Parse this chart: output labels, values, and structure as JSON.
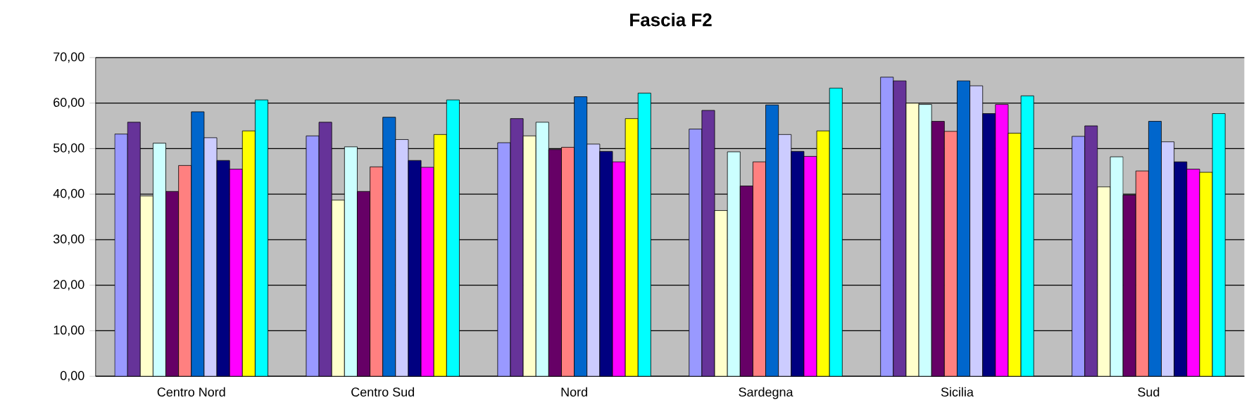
{
  "chart_data": {
    "type": "bar",
    "title": "Fascia F2",
    "categories": [
      "Centro Nord",
      "Centro Sud",
      "Nord",
      "Sardegna",
      "Sicilia",
      "Sud"
    ],
    "series": [
      {
        "color": "#9999ff",
        "values": [
          53.2,
          52.8,
          51.3,
          54.3,
          65.7,
          52.7
        ]
      },
      {
        "color": "#663399",
        "values": [
          55.8,
          55.8,
          56.6,
          58.4,
          64.9,
          55.0
        ]
      },
      {
        "color": "#ffffcc",
        "values": [
          39.6,
          38.7,
          52.8,
          36.4,
          60.0,
          41.6
        ]
      },
      {
        "color": "#ccffff",
        "values": [
          51.2,
          50.4,
          55.8,
          49.3,
          59.7,
          48.2
        ]
      },
      {
        "color": "#660066",
        "values": [
          40.6,
          40.6,
          49.8,
          41.8,
          56.0,
          39.8
        ]
      },
      {
        "color": "#ff8080",
        "values": [
          46.3,
          46.0,
          50.3,
          47.1,
          53.8,
          45.1
        ]
      },
      {
        "color": "#0066cc",
        "values": [
          58.1,
          56.9,
          61.4,
          59.6,
          64.9,
          56.0
        ]
      },
      {
        "color": "#ccccff",
        "values": [
          52.4,
          52.0,
          51.0,
          53.1,
          63.8,
          51.5
        ]
      },
      {
        "color": "#000080",
        "values": [
          47.4,
          47.4,
          49.4,
          49.4,
          57.7,
          47.1
        ]
      },
      {
        "color": "#ff00ff",
        "values": [
          45.5,
          45.9,
          47.1,
          48.3,
          59.7,
          45.5
        ]
      },
      {
        "color": "#ffff00",
        "values": [
          53.9,
          53.1,
          56.6,
          53.9,
          53.4,
          44.8
        ]
      },
      {
        "color": "#00ffff",
        "values": [
          60.7,
          60.7,
          62.2,
          63.3,
          61.6,
          57.7
        ]
      }
    ],
    "ylim": [
      0,
      70
    ],
    "yticks": [
      {
        "value": 0,
        "label": "0,00"
      },
      {
        "value": 10,
        "label": "10,00"
      },
      {
        "value": 20,
        "label": "20,00"
      },
      {
        "value": 30,
        "label": "30,00"
      },
      {
        "value": 40,
        "label": "40,00"
      },
      {
        "value": 50,
        "label": "50,00"
      },
      {
        "value": 60,
        "label": "60,00"
      },
      {
        "value": 70,
        "label": "70,00"
      }
    ],
    "grid": "y",
    "legend": false
  }
}
